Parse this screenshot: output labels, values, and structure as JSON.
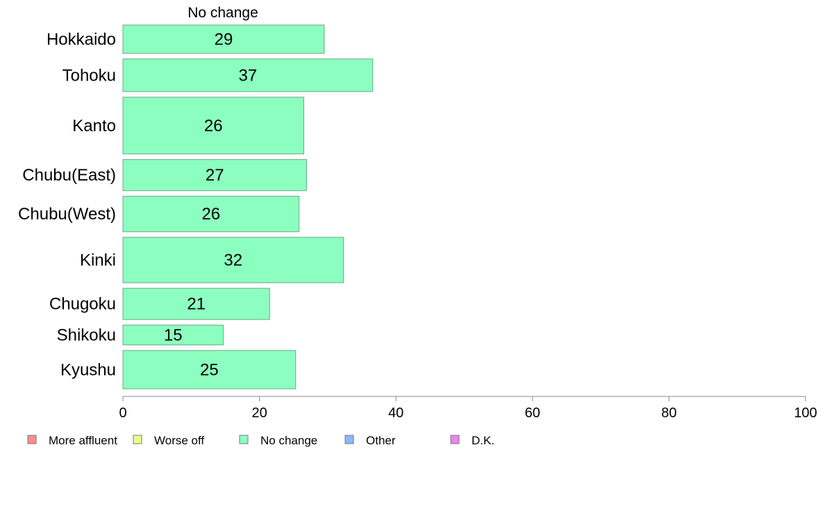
{
  "chart_data": {
    "type": "bar",
    "orientation": "horizontal",
    "series_label": "No change",
    "categories": [
      "Hokkaido",
      "Tohoku",
      "Kanto",
      "Chubu(East)",
      "Chubu(West)",
      "Kinki",
      "Chugoku",
      "Shikoku",
      "Kyushu"
    ],
    "series": [
      {
        "name": "No change",
        "values": [
          29.5,
          36.6,
          26.5,
          26.9,
          25.8,
          32.3,
          21.5,
          14.7,
          25.3
        ],
        "color": "#8cffc0"
      }
    ],
    "data_labels": [
      "29",
      "37",
      "26",
      "27",
      "26",
      "32",
      "21",
      "15",
      "25"
    ],
    "bar_weights": [
      1.0,
      1.15,
      2.0,
      1.1,
      1.25,
      1.6,
      1.1,
      0.7,
      1.35
    ],
    "xlim": [
      0,
      100
    ],
    "xticks": [
      "0",
      "20",
      "40",
      "60",
      "80",
      "100"
    ],
    "grid": false,
    "legend": {
      "position": "bottom-left",
      "items": [
        {
          "label": "More affluent",
          "color": "#ff8c8c"
        },
        {
          "label": "Worse off",
          "color": "#e8ff8c"
        },
        {
          "label": "No change",
          "color": "#8cffc0"
        },
        {
          "label": "Other",
          "color": "#8cb8ff"
        },
        {
          "label": "D.K.",
          "color": "#ee82ee"
        }
      ]
    }
  }
}
